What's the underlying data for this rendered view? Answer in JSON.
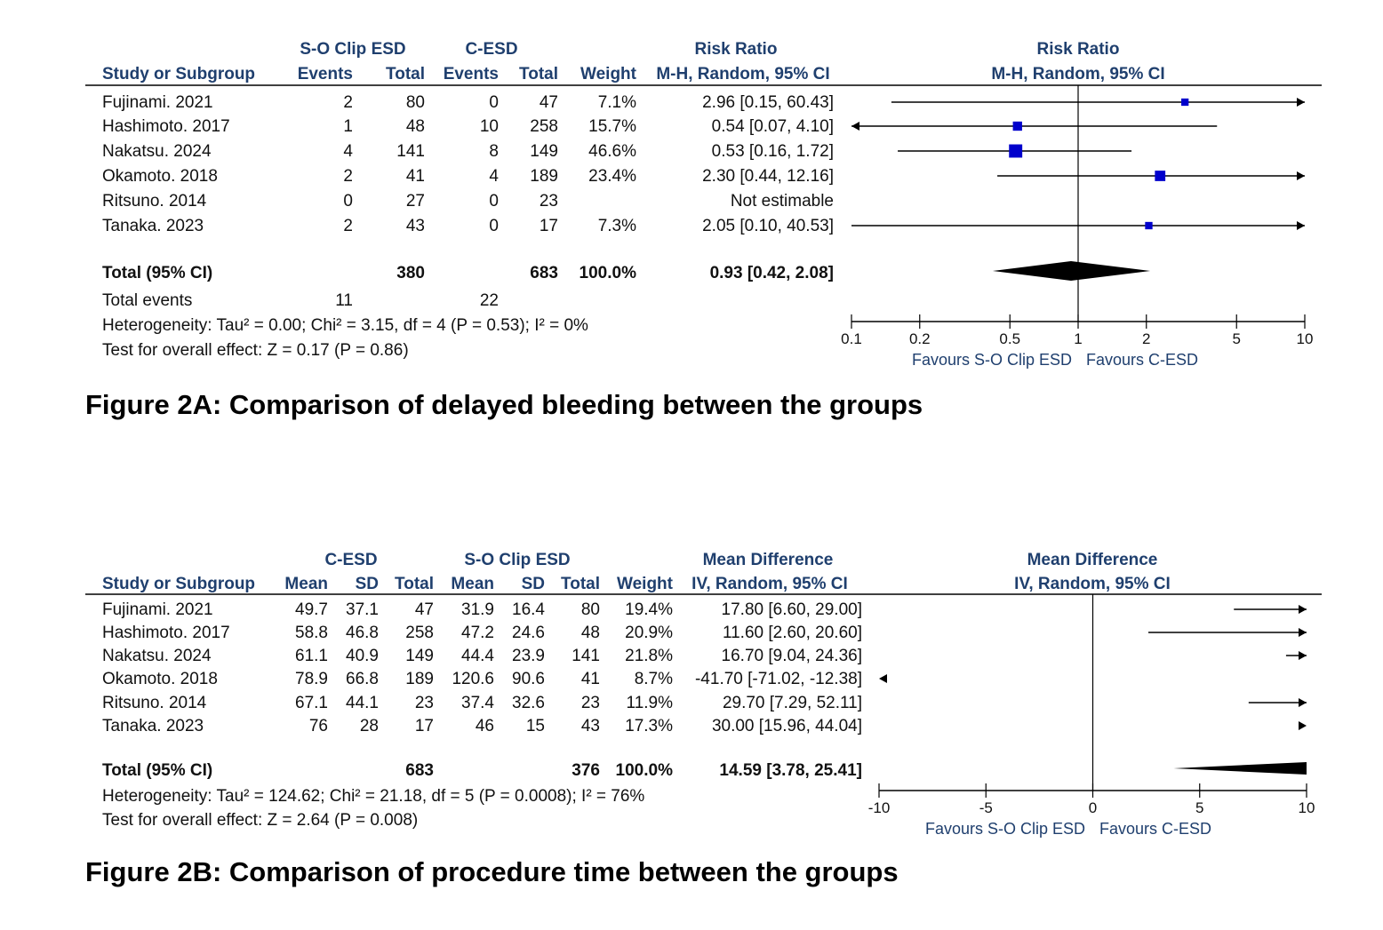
{
  "chart_data": [
    {
      "type": "forest",
      "caption": "Figure 2A: Comparison of delayed bleeding between the groups",
      "measure": "Risk Ratio",
      "method": "M-H, Random, 95% CI",
      "group1": "S-O Clip ESD",
      "group2": "C-ESD",
      "columns": [
        "Study or Subgroup",
        "Events",
        "Total",
        "Events",
        "Total",
        "Weight",
        "M-H, Random, 95% CI"
      ],
      "studies": [
        {
          "name": "Fujinami. 2021",
          "e1": "2",
          "t1": "80",
          "e2": "0",
          "t2": "47",
          "weight": "7.1%",
          "ci_text": "2.96 [0.15, 60.43]",
          "est": 2.96,
          "lo": 0.15,
          "hi": 60.43,
          "w": 7.1
        },
        {
          "name": "Hashimoto. 2017",
          "e1": "1",
          "t1": "48",
          "e2": "10",
          "t2": "258",
          "weight": "15.7%",
          "ci_text": "0.54 [0.07, 4.10]",
          "est": 0.54,
          "lo": 0.07,
          "hi": 4.1,
          "w": 15.7
        },
        {
          "name": "Nakatsu. 2024",
          "e1": "4",
          "t1": "141",
          "e2": "8",
          "t2": "149",
          "weight": "46.6%",
          "ci_text": "0.53 [0.16, 1.72]",
          "est": 0.53,
          "lo": 0.16,
          "hi": 1.72,
          "w": 46.6
        },
        {
          "name": "Okamoto. 2018",
          "e1": "2",
          "t1": "41",
          "e2": "4",
          "t2": "189",
          "weight": "23.4%",
          "ci_text": "2.30 [0.44, 12.16]",
          "est": 2.3,
          "lo": 0.44,
          "hi": 12.16,
          "w": 23.4
        },
        {
          "name": "Ritsuno. 2014",
          "e1": "0",
          "t1": "27",
          "e2": "0",
          "t2": "23",
          "weight": "",
          "ci_text": "Not estimable",
          "est": null,
          "lo": null,
          "hi": null,
          "w": 0
        },
        {
          "name": "Tanaka. 2023",
          "e1": "2",
          "t1": "43",
          "e2": "0",
          "t2": "17",
          "weight": "7.3%",
          "ci_text": "2.05 [0.10, 40.53]",
          "est": 2.05,
          "lo": 0.1,
          "hi": 40.53,
          "w": 7.3
        }
      ],
      "total": {
        "label": "Total (95% CI)",
        "t1": "380",
        "t2": "683",
        "weight": "100.0%",
        "ci_text": "0.93 [0.42, 2.08]",
        "est": 0.93,
        "lo": 0.42,
        "hi": 2.08
      },
      "total_events": {
        "label": "Total events",
        "e1": "11",
        "e2": "22"
      },
      "heterogeneity": "Heterogeneity: Tau² = 0.00; Chi² = 3.15, df = 4 (P = 0.53); I² = 0%",
      "overall_effect": "Test for overall effect: Z = 0.17 (P = 0.86)",
      "axis": {
        "scale": "log",
        "range": [
          0.1,
          10
        ],
        "ticks": [
          "0.1",
          "0.2",
          "0.5",
          "1",
          "2",
          "5",
          "10"
        ],
        "null_line": 1
      },
      "favours_left": "Favours S-O Clip ESD",
      "favours_right": "Favours C-ESD"
    },
    {
      "type": "forest",
      "caption": "Figure 2B: Comparison of procedure time between the groups",
      "measure": "Mean Difference",
      "method": "IV, Random, 95% CI",
      "group1": "C-ESD",
      "group2": "S-O Clip ESD",
      "columns": [
        "Study or Subgroup",
        "Mean",
        "SD",
        "Total",
        "Mean",
        "SD",
        "Total",
        "Weight",
        "IV, Random, 95% CI"
      ],
      "studies": [
        {
          "name": "Fujinami. 2021",
          "m1": "49.7",
          "sd1": "37.1",
          "t1": "47",
          "m2": "31.9",
          "sd2": "16.4",
          "t2": "80",
          "weight": "19.4%",
          "ci_text": "17.80 [6.60, 29.00]",
          "est": 17.8,
          "lo": 6.6,
          "hi": 29.0
        },
        {
          "name": "Hashimoto. 2017",
          "m1": "58.8",
          "sd1": "46.8",
          "t1": "258",
          "m2": "47.2",
          "sd2": "24.6",
          "t2": "48",
          "weight": "20.9%",
          "ci_text": "11.60 [2.60, 20.60]",
          "est": 11.6,
          "lo": 2.6,
          "hi": 20.6
        },
        {
          "name": "Nakatsu. 2024",
          "m1": "61.1",
          "sd1": "40.9",
          "t1": "149",
          "m2": "44.4",
          "sd2": "23.9",
          "t2": "141",
          "weight": "21.8%",
          "ci_text": "16.70 [9.04, 24.36]",
          "est": 16.7,
          "lo": 9.04,
          "hi": 24.36
        },
        {
          "name": "Okamoto. 2018",
          "m1": "78.9",
          "sd1": "66.8",
          "t1": "189",
          "m2": "120.6",
          "sd2": "90.6",
          "t2": "41",
          "weight": "8.7%",
          "ci_text": "-41.70 [-71.02, -12.38]",
          "est": -41.7,
          "lo": -71.02,
          "hi": -12.38
        },
        {
          "name": "Ritsuno. 2014",
          "m1": "67.1",
          "sd1": "44.1",
          "t1": "23",
          "m2": "37.4",
          "sd2": "32.6",
          "t2": "23",
          "weight": "11.9%",
          "ci_text": "29.70 [7.29, 52.11]",
          "est": 29.7,
          "lo": 7.29,
          "hi": 52.11
        },
        {
          "name": "Tanaka. 2023",
          "m1": "76",
          "sd1": "28",
          "t1": "17",
          "m2": "46",
          "sd2": "15",
          "t2": "43",
          "weight": "17.3%",
          "ci_text": "30.00 [15.96, 44.04]",
          "est": 30.0,
          "lo": 15.96,
          "hi": 44.04
        }
      ],
      "total": {
        "label": "Total (95% CI)",
        "t1": "683",
        "t2": "376",
        "weight": "100.0%",
        "ci_text": "14.59 [3.78, 25.41]",
        "est": 14.59,
        "lo": 3.78,
        "hi": 25.41
      },
      "heterogeneity": "Heterogeneity: Tau² = 124.62; Chi² = 21.18, df = 5 (P = 0.0008); I² = 76%",
      "overall_effect": "Test for overall effect: Z = 2.64 (P = 0.008)",
      "axis": {
        "scale": "linear",
        "range": [
          -10,
          10
        ],
        "ticks": [
          "-10",
          "-5",
          "0",
          "5",
          "10"
        ],
        "null_line": 0
      },
      "favours_left": "Favours S-O Clip ESD",
      "favours_right": "Favours C-ESD"
    }
  ],
  "colors": {
    "header": "#1f3f6e",
    "marker": "#0000cc",
    "text": "#111111",
    "line": "#000000"
  }
}
